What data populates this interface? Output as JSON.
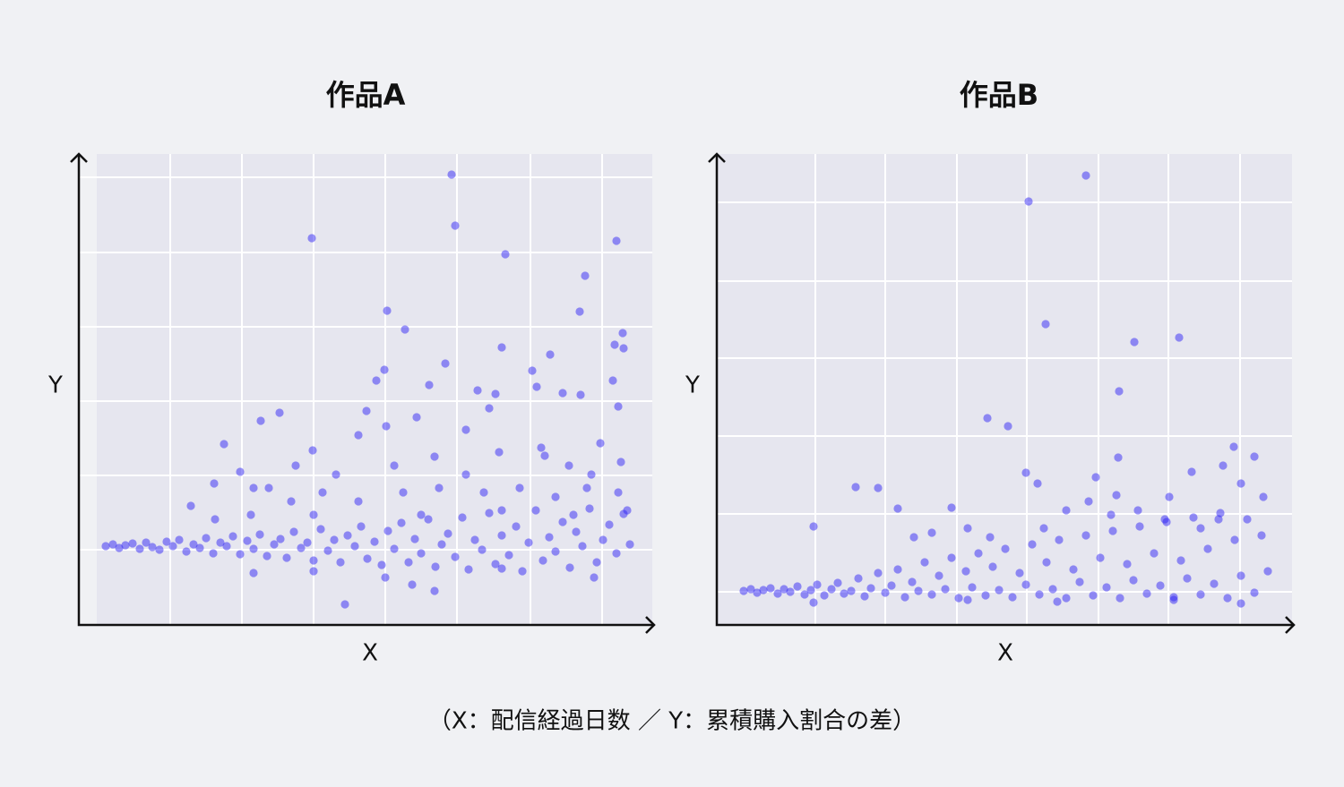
{
  "chart_data": [
    {
      "type": "scatter",
      "title": "作品A",
      "xlabel": "X",
      "ylabel": "Y",
      "color": "#2a1ef5",
      "grid": true,
      "xlim": [
        0,
        640
      ],
      "ylim": [
        0,
        526
      ],
      "xticks": [
        102,
        182,
        262,
        342,
        422,
        504,
        584
      ],
      "yticks": [
        84,
        167,
        250,
        333,
        416,
        500
      ],
      "x": [
        30,
        38,
        45,
        52,
        60,
        68,
        75,
        82,
        90,
        98,
        105,
        112,
        120,
        128,
        135,
        142,
        150,
        158,
        165,
        172,
        180,
        188,
        195,
        202,
        210,
        218,
        225,
        232,
        240,
        248,
        255,
        262,
        270,
        278,
        285,
        292,
        300,
        308,
        315,
        322,
        330,
        338,
        345,
        352,
        360,
        368,
        375,
        382,
        390,
        398,
        405,
        412,
        420,
        428,
        435,
        442,
        450,
        458,
        465,
        472,
        480,
        488,
        495,
        502,
        510,
        518,
        525,
        532,
        540,
        548,
        555,
        562,
        570,
        578,
        585,
        592,
        600,
        608,
        615,
        162,
        203,
        224,
        151,
        180,
        195,
        125,
        242,
        261,
        312,
        321,
        341,
        332,
        343,
        377,
        391,
        409,
        432,
        445,
        465,
        458,
        506,
        526,
        511,
        540,
        560,
        596,
        598,
        608,
        607,
        602,
        582,
        516,
        520,
        547,
        572,
        605,
        469,
        432,
        397,
        352,
        287,
        272,
        212,
        237,
        262,
        312,
        362,
        402,
        452,
        492,
        532,
        567,
        602,
        152,
        192,
        382,
        472,
        552,
        612,
        195,
        262,
        342,
        372,
        397,
        472,
        575,
        416,
        420,
        260,
        600,
        476,
        565,
        344,
        559,
        364,
        472,
        297
      ],
      "y": [
        88,
        90,
        86,
        89,
        91,
        85,
        92,
        87,
        84,
        93,
        88,
        95,
        82,
        90,
        86,
        97,
        80,
        92,
        88,
        99,
        79,
        94,
        85,
        101,
        77,
        90,
        96,
        75,
        104,
        86,
        92,
        72,
        107,
        83,
        95,
        70,
        100,
        88,
        110,
        74,
        93,
        67,
        105,
        85,
        114,
        70,
        96,
        80,
        118,
        65,
        90,
        102,
        76,
        120,
        62,
        95,
        84,
        125,
        68,
        100,
        78,
        110,
        60,
        92,
        128,
        72,
        98,
        82,
        115,
        64,
        104,
        88,
        130,
        70,
        95,
        112,
        80,
        124,
        90,
        202,
        228,
        237,
        158,
        171,
        153,
        133,
        178,
        195,
        212,
        239,
        285,
        273,
        222,
        232,
        268,
        292,
        218,
        262,
        258,
        242,
        284,
        302,
        266,
        259,
        257,
        273,
        313,
        309,
        326,
        244,
        203,
        198,
        189,
        178,
        168,
        182,
        193,
        168,
        188,
        178,
        168,
        148,
        153,
        138,
        123,
        138,
        148,
        153,
        148,
        153,
        143,
        153,
        148,
        118,
        123,
        123,
        128,
        123,
        128,
        58,
        60,
        53,
        45,
        38,
        63,
        53,
        503,
        446,
        432,
        429,
        414,
        390,
        351,
        350,
        330,
        310,
        23
      ]
    },
    {
      "type": "scatter",
      "title": "作品B",
      "xlabel": "X",
      "ylabel": "Y",
      "color": "#2a1ef5",
      "grid": true,
      "xlim": [
        0,
        642
      ],
      "ylim": [
        0,
        526
      ],
      "xticks": [
        110,
        188,
        268,
        346,
        426,
        504,
        584
      ],
      "yticks": [
        37,
        124,
        211,
        298,
        384,
        472
      ],
      "x": [
        30,
        38,
        45,
        52,
        60,
        68,
        75,
        82,
        90,
        98,
        105,
        112,
        120,
        128,
        135,
        142,
        150,
        158,
        165,
        172,
        180,
        188,
        195,
        202,
        210,
        218,
        225,
        232,
        240,
        248,
        255,
        262,
        270,
        278,
        285,
        292,
        300,
        308,
        315,
        322,
        330,
        338,
        345,
        352,
        360,
        368,
        375,
        382,
        390,
        398,
        405,
        412,
        420,
        428,
        435,
        442,
        450,
        458,
        465,
        472,
        480,
        488,
        495,
        502,
        510,
        518,
        525,
        532,
        540,
        548,
        555,
        562,
        570,
        578,
        585,
        592,
        600,
        608,
        615,
        412,
        348,
        367,
        466,
        516,
        449,
        302,
        325,
        448,
        155,
        180,
        202,
        108,
        262,
        577,
        600,
        345,
        358,
        423,
        446,
        530,
        565,
        220,
        240,
        280,
        305,
        365,
        390,
        415,
        470,
        505,
        540,
        585,
        610,
        500,
        560,
        440,
        108,
        280,
        380,
        510,
        585
      ],
      "y": [
        38,
        40,
        36,
        39,
        41,
        35,
        40,
        37,
        43,
        34,
        39,
        45,
        33,
        40,
        47,
        35,
        38,
        52,
        32,
        41,
        58,
        36,
        44,
        62,
        31,
        48,
        38,
        70,
        34,
        55,
        40,
        75,
        30,
        60,
        42,
        80,
        33,
        65,
        39,
        85,
        31,
        58,
        45,
        90,
        34,
        70,
        40,
        95,
        30,
        62,
        48,
        100,
        33,
        75,
        42,
        105,
        30,
        68,
        50,
        110,
        35,
        80,
        44,
        115,
        31,
        72,
        52,
        120,
        34,
        85,
        46,
        125,
        30,
        95,
        55,
        118,
        36,
        100,
        60,
        502,
        473,
        336,
        316,
        321,
        261,
        231,
        222,
        187,
        154,
        153,
        130,
        110,
        131,
        199,
        188,
        170,
        158,
        165,
        145,
        171,
        178,
        98,
        103,
        108,
        98,
        108,
        128,
        138,
        128,
        143,
        108,
        158,
        143,
        118,
        118,
        123,
        25,
        28,
        26,
        28,
        24
      ]
    }
  ],
  "caption": "（X：配信経過日数 ／ Y：累積購入割合の差）"
}
